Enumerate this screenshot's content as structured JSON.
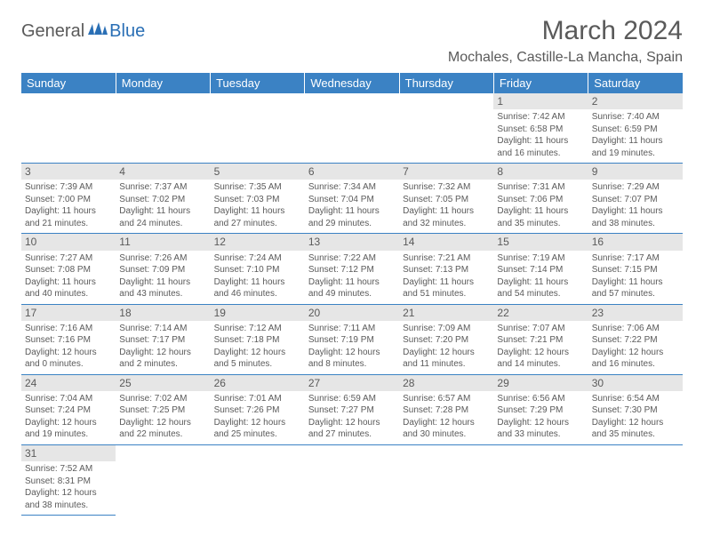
{
  "logo": {
    "text1": "General",
    "text2": "Blue"
  },
  "title": "March 2024",
  "location": "Mochales, Castille-La Mancha, Spain",
  "colors": {
    "header_bg": "#3b82c4",
    "header_text": "#ffffff",
    "daynum_bg": "#e6e6e6",
    "border": "#3b82c4",
    "body_text": "#5a5a5a",
    "logo_blue": "#2a6fb5"
  },
  "weekdays": [
    "Sunday",
    "Monday",
    "Tuesday",
    "Wednesday",
    "Thursday",
    "Friday",
    "Saturday"
  ],
  "grid": [
    [
      {
        "n": "",
        "lines": []
      },
      {
        "n": "",
        "lines": []
      },
      {
        "n": "",
        "lines": []
      },
      {
        "n": "",
        "lines": []
      },
      {
        "n": "",
        "lines": []
      },
      {
        "n": "1",
        "lines": [
          "Sunrise: 7:42 AM",
          "Sunset: 6:58 PM",
          "Daylight: 11 hours",
          "and 16 minutes."
        ]
      },
      {
        "n": "2",
        "lines": [
          "Sunrise: 7:40 AM",
          "Sunset: 6:59 PM",
          "Daylight: 11 hours",
          "and 19 minutes."
        ]
      }
    ],
    [
      {
        "n": "3",
        "lines": [
          "Sunrise: 7:39 AM",
          "Sunset: 7:00 PM",
          "Daylight: 11 hours",
          "and 21 minutes."
        ]
      },
      {
        "n": "4",
        "lines": [
          "Sunrise: 7:37 AM",
          "Sunset: 7:02 PM",
          "Daylight: 11 hours",
          "and 24 minutes."
        ]
      },
      {
        "n": "5",
        "lines": [
          "Sunrise: 7:35 AM",
          "Sunset: 7:03 PM",
          "Daylight: 11 hours",
          "and 27 minutes."
        ]
      },
      {
        "n": "6",
        "lines": [
          "Sunrise: 7:34 AM",
          "Sunset: 7:04 PM",
          "Daylight: 11 hours",
          "and 29 minutes."
        ]
      },
      {
        "n": "7",
        "lines": [
          "Sunrise: 7:32 AM",
          "Sunset: 7:05 PM",
          "Daylight: 11 hours",
          "and 32 minutes."
        ]
      },
      {
        "n": "8",
        "lines": [
          "Sunrise: 7:31 AM",
          "Sunset: 7:06 PM",
          "Daylight: 11 hours",
          "and 35 minutes."
        ]
      },
      {
        "n": "9",
        "lines": [
          "Sunrise: 7:29 AM",
          "Sunset: 7:07 PM",
          "Daylight: 11 hours",
          "and 38 minutes."
        ]
      }
    ],
    [
      {
        "n": "10",
        "lines": [
          "Sunrise: 7:27 AM",
          "Sunset: 7:08 PM",
          "Daylight: 11 hours",
          "and 40 minutes."
        ]
      },
      {
        "n": "11",
        "lines": [
          "Sunrise: 7:26 AM",
          "Sunset: 7:09 PM",
          "Daylight: 11 hours",
          "and 43 minutes."
        ]
      },
      {
        "n": "12",
        "lines": [
          "Sunrise: 7:24 AM",
          "Sunset: 7:10 PM",
          "Daylight: 11 hours",
          "and 46 minutes."
        ]
      },
      {
        "n": "13",
        "lines": [
          "Sunrise: 7:22 AM",
          "Sunset: 7:12 PM",
          "Daylight: 11 hours",
          "and 49 minutes."
        ]
      },
      {
        "n": "14",
        "lines": [
          "Sunrise: 7:21 AM",
          "Sunset: 7:13 PM",
          "Daylight: 11 hours",
          "and 51 minutes."
        ]
      },
      {
        "n": "15",
        "lines": [
          "Sunrise: 7:19 AM",
          "Sunset: 7:14 PM",
          "Daylight: 11 hours",
          "and 54 minutes."
        ]
      },
      {
        "n": "16",
        "lines": [
          "Sunrise: 7:17 AM",
          "Sunset: 7:15 PM",
          "Daylight: 11 hours",
          "and 57 minutes."
        ]
      }
    ],
    [
      {
        "n": "17",
        "lines": [
          "Sunrise: 7:16 AM",
          "Sunset: 7:16 PM",
          "Daylight: 12 hours",
          "and 0 minutes."
        ]
      },
      {
        "n": "18",
        "lines": [
          "Sunrise: 7:14 AM",
          "Sunset: 7:17 PM",
          "Daylight: 12 hours",
          "and 2 minutes."
        ]
      },
      {
        "n": "19",
        "lines": [
          "Sunrise: 7:12 AM",
          "Sunset: 7:18 PM",
          "Daylight: 12 hours",
          "and 5 minutes."
        ]
      },
      {
        "n": "20",
        "lines": [
          "Sunrise: 7:11 AM",
          "Sunset: 7:19 PM",
          "Daylight: 12 hours",
          "and 8 minutes."
        ]
      },
      {
        "n": "21",
        "lines": [
          "Sunrise: 7:09 AM",
          "Sunset: 7:20 PM",
          "Daylight: 12 hours",
          "and 11 minutes."
        ]
      },
      {
        "n": "22",
        "lines": [
          "Sunrise: 7:07 AM",
          "Sunset: 7:21 PM",
          "Daylight: 12 hours",
          "and 14 minutes."
        ]
      },
      {
        "n": "23",
        "lines": [
          "Sunrise: 7:06 AM",
          "Sunset: 7:22 PM",
          "Daylight: 12 hours",
          "and 16 minutes."
        ]
      }
    ],
    [
      {
        "n": "24",
        "lines": [
          "Sunrise: 7:04 AM",
          "Sunset: 7:24 PM",
          "Daylight: 12 hours",
          "and 19 minutes."
        ]
      },
      {
        "n": "25",
        "lines": [
          "Sunrise: 7:02 AM",
          "Sunset: 7:25 PM",
          "Daylight: 12 hours",
          "and 22 minutes."
        ]
      },
      {
        "n": "26",
        "lines": [
          "Sunrise: 7:01 AM",
          "Sunset: 7:26 PM",
          "Daylight: 12 hours",
          "and 25 minutes."
        ]
      },
      {
        "n": "27",
        "lines": [
          "Sunrise: 6:59 AM",
          "Sunset: 7:27 PM",
          "Daylight: 12 hours",
          "and 27 minutes."
        ]
      },
      {
        "n": "28",
        "lines": [
          "Sunrise: 6:57 AM",
          "Sunset: 7:28 PM",
          "Daylight: 12 hours",
          "and 30 minutes."
        ]
      },
      {
        "n": "29",
        "lines": [
          "Sunrise: 6:56 AM",
          "Sunset: 7:29 PM",
          "Daylight: 12 hours",
          "and 33 minutes."
        ]
      },
      {
        "n": "30",
        "lines": [
          "Sunrise: 6:54 AM",
          "Sunset: 7:30 PM",
          "Daylight: 12 hours",
          "and 35 minutes."
        ]
      }
    ],
    [
      {
        "n": "31",
        "lines": [
          "Sunrise: 7:52 AM",
          "Sunset: 8:31 PM",
          "Daylight: 12 hours",
          "and 38 minutes."
        ]
      },
      {
        "n": "",
        "lines": []
      },
      {
        "n": "",
        "lines": []
      },
      {
        "n": "",
        "lines": []
      },
      {
        "n": "",
        "lines": []
      },
      {
        "n": "",
        "lines": []
      },
      {
        "n": "",
        "lines": []
      }
    ]
  ]
}
